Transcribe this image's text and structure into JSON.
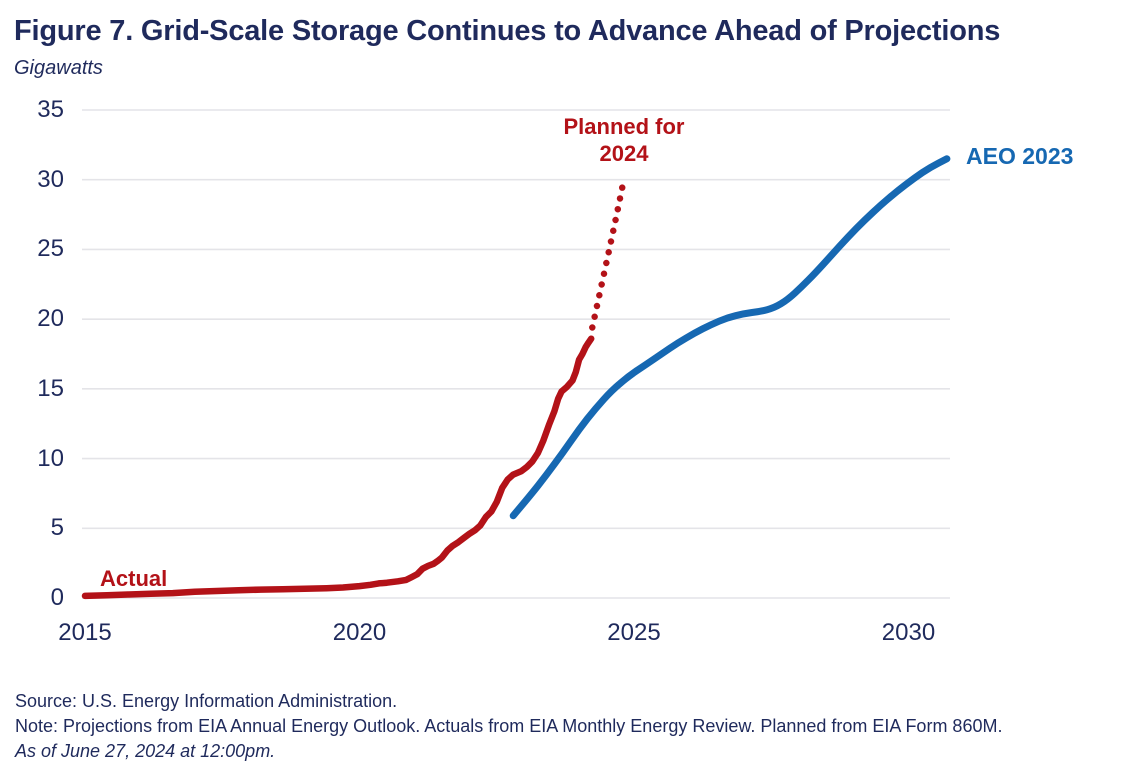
{
  "header": {
    "title": "Figure 7. Grid-Scale Storage Continues to Advance Ahead of Projections",
    "subtitle": "Gigawatts"
  },
  "footer": {
    "source": "Source: U.S. Energy Information Administration.",
    "note": "Note: Projections from EIA Annual Energy Outlook. Actuals from EIA Monthly Energy Review. Planned from EIA Form 860M.",
    "as_of": "As of June 27, 2024 at 12:00pm."
  },
  "colors": {
    "navy": "#1f2a5c",
    "red": "#b31218",
    "blue": "#1668b2",
    "grid": "#e4e4e8"
  },
  "chart_data": {
    "type": "line",
    "title": "Figure 7. Grid-Scale Storage Continues to Advance Ahead of Projections",
    "ylabel": "Gigawatts",
    "xlabel": "",
    "xlim": [
      2015,
      2031
    ],
    "ylim": [
      0,
      35
    ],
    "xticks": [
      2015,
      2020,
      2025,
      2030
    ],
    "yticks": [
      0,
      5,
      10,
      15,
      20,
      25,
      30,
      35
    ],
    "grid": true,
    "legend_position": "inline-annotations",
    "series": [
      {
        "name": "Actual",
        "color": "#b31218",
        "style": "solid",
        "points": [
          [
            2015.0,
            0.15
          ],
          [
            2015.4,
            0.2
          ],
          [
            2015.8,
            0.25
          ],
          [
            2016.2,
            0.3
          ],
          [
            2016.6,
            0.35
          ],
          [
            2017.0,
            0.45
          ],
          [
            2017.4,
            0.5
          ],
          [
            2017.8,
            0.55
          ],
          [
            2018.2,
            0.6
          ],
          [
            2018.6,
            0.63
          ],
          [
            2019.0,
            0.66
          ],
          [
            2019.4,
            0.7
          ],
          [
            2019.7,
            0.75
          ],
          [
            2020.0,
            0.85
          ],
          [
            2020.2,
            0.95
          ],
          [
            2020.35,
            1.05
          ],
          [
            2020.5,
            1.1
          ],
          [
            2020.7,
            1.2
          ],
          [
            2020.85,
            1.3
          ],
          [
            2020.95,
            1.5
          ],
          [
            2021.05,
            1.7
          ],
          [
            2021.15,
            2.1
          ],
          [
            2021.25,
            2.3
          ],
          [
            2021.35,
            2.45
          ],
          [
            2021.42,
            2.65
          ],
          [
            2021.5,
            2.9
          ],
          [
            2021.6,
            3.4
          ],
          [
            2021.7,
            3.75
          ],
          [
            2021.8,
            4.0
          ],
          [
            2021.9,
            4.3
          ],
          [
            2022.0,
            4.6
          ],
          [
            2022.1,
            4.85
          ],
          [
            2022.2,
            5.2
          ],
          [
            2022.3,
            5.8
          ],
          [
            2022.4,
            6.2
          ],
          [
            2022.5,
            6.9
          ],
          [
            2022.6,
            7.9
          ],
          [
            2022.7,
            8.5
          ],
          [
            2022.8,
            8.85
          ],
          [
            2022.95,
            9.1
          ],
          [
            2023.05,
            9.4
          ],
          [
            2023.15,
            9.8
          ],
          [
            2023.25,
            10.4
          ],
          [
            2023.35,
            11.3
          ],
          [
            2023.45,
            12.4
          ],
          [
            2023.55,
            13.4
          ],
          [
            2023.62,
            14.3
          ],
          [
            2023.68,
            14.8
          ],
          [
            2023.78,
            15.15
          ],
          [
            2023.88,
            15.6
          ],
          [
            2023.94,
            16.2
          ],
          [
            2024.0,
            17.1
          ],
          [
            2024.06,
            17.5
          ],
          [
            2024.12,
            18.0
          ],
          [
            2024.17,
            18.3
          ],
          [
            2024.22,
            18.6
          ]
        ]
      },
      {
        "name": "Planned for 2024",
        "color": "#b31218",
        "style": "dotted",
        "points": [
          [
            2024.24,
            19.4
          ],
          [
            2024.4,
            22.3
          ],
          [
            2024.55,
            25.0
          ],
          [
            2024.68,
            27.4
          ],
          [
            2024.8,
            29.7
          ]
        ]
      },
      {
        "name": "AEO 2023",
        "color": "#1668b2",
        "style": "solid",
        "points": [
          [
            2022.8,
            5.9
          ],
          [
            2023.1,
            7.3
          ],
          [
            2023.4,
            8.8
          ],
          [
            2023.7,
            10.4
          ],
          [
            2024.0,
            12.1
          ],
          [
            2024.3,
            13.6
          ],
          [
            2024.6,
            14.9
          ],
          [
            2024.9,
            15.9
          ],
          [
            2025.2,
            16.7
          ],
          [
            2025.5,
            17.5
          ],
          [
            2025.8,
            18.3
          ],
          [
            2026.1,
            19.0
          ],
          [
            2026.4,
            19.6
          ],
          [
            2026.7,
            20.1
          ],
          [
            2027.0,
            20.4
          ],
          [
            2027.3,
            20.55
          ],
          [
            2027.55,
            20.8
          ],
          [
            2027.8,
            21.4
          ],
          [
            2028.05,
            22.3
          ],
          [
            2028.3,
            23.3
          ],
          [
            2028.6,
            24.6
          ],
          [
            2028.9,
            25.9
          ],
          [
            2029.2,
            27.1
          ],
          [
            2029.5,
            28.2
          ],
          [
            2029.8,
            29.2
          ],
          [
            2030.1,
            30.1
          ],
          [
            2030.4,
            30.9
          ],
          [
            2030.7,
            31.5
          ]
        ]
      }
    ]
  }
}
